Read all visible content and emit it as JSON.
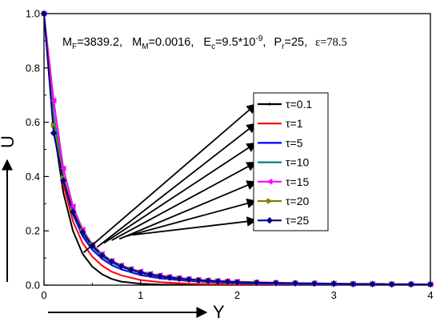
{
  "chart_data": {
    "type": "line",
    "xlabel": "Y",
    "ylabel": "U",
    "xlim": [
      0,
      4
    ],
    "ylim": [
      0,
      1.0
    ],
    "x_ticks": [
      "0",
      "1",
      "2",
      "3",
      "4"
    ],
    "y_ticks": [
      "0.0",
      "0.2",
      "0.4",
      "0.6",
      "0.8",
      "1.0"
    ],
    "annotation": {
      "mf_sym": "M",
      "mf_sub": "F",
      "mf_val": "=3839.2,",
      "mm_sym": "M",
      "mm_sub": "M",
      "mm_val": "=0.0016,",
      "ec_sym": "E",
      "ec_sub": "c",
      "ec_val": "=9.5*10",
      "ec_exp": "-9",
      "ec_tail": ",",
      "pr_sym": "P",
      "pr_sub": "r",
      "pr_val": "=25,",
      "eps": "ε=78.5"
    },
    "legend_position": "center-right",
    "arrow_tips": [
      {
        "x": 0.41,
        "y": 0.12
      },
      {
        "x": 0.55,
        "y": 0.14
      },
      {
        "x": 0.62,
        "y": 0.155
      },
      {
        "x": 0.7,
        "y": 0.165
      },
      {
        "x": 0.78,
        "y": 0.17
      },
      {
        "x": 0.85,
        "y": 0.18
      },
      {
        "x": 0.92,
        "y": 0.185
      }
    ],
    "series": [
      {
        "name": "τ=0.1",
        "color": "#000000",
        "marker": "none",
        "x": [
          0,
          0.1,
          0.2,
          0.3,
          0.4,
          0.5,
          0.6,
          0.7,
          0.8,
          1.0,
          1.2,
          1.5,
          2.0,
          2.5,
          3.0,
          4.0
        ],
        "y": [
          1.0,
          0.58,
          0.34,
          0.2,
          0.115,
          0.068,
          0.04,
          0.023,
          0.013,
          0.005,
          0.002,
          0.001,
          0.0,
          0.0,
          0.0,
          0.0
        ]
      },
      {
        "name": "τ=1",
        "color": "#ff0000",
        "marker": "none",
        "x": [
          0,
          0.1,
          0.2,
          0.3,
          0.4,
          0.5,
          0.6,
          0.7,
          0.8,
          1.0,
          1.2,
          1.5,
          2.0,
          2.5,
          3.0,
          4.0
        ],
        "y": [
          1.0,
          0.6,
          0.37,
          0.235,
          0.155,
          0.105,
          0.072,
          0.05,
          0.036,
          0.019,
          0.011,
          0.005,
          0.002,
          0.001,
          0.0,
          0.0
        ]
      },
      {
        "name": "τ=5",
        "color": "#0000ff",
        "marker": "none",
        "x": [
          0,
          0.1,
          0.2,
          0.3,
          0.4,
          0.5,
          0.6,
          0.7,
          0.8,
          1.0,
          1.2,
          1.5,
          2.0,
          2.5,
          3.0,
          4.0
        ],
        "y": [
          1.0,
          0.62,
          0.39,
          0.26,
          0.18,
          0.13,
          0.097,
          0.074,
          0.058,
          0.037,
          0.025,
          0.015,
          0.007,
          0.004,
          0.002,
          0.001
        ]
      },
      {
        "name": "τ=10",
        "color": "#008080",
        "marker": "none",
        "x": [
          0,
          0.1,
          0.2,
          0.3,
          0.4,
          0.5,
          0.6,
          0.7,
          0.8,
          1.0,
          1.2,
          1.5,
          2.0,
          2.5,
          3.0,
          4.0
        ],
        "y": [
          1.0,
          0.63,
          0.4,
          0.27,
          0.19,
          0.14,
          0.106,
          0.083,
          0.066,
          0.044,
          0.031,
          0.019,
          0.01,
          0.006,
          0.004,
          0.002
        ]
      },
      {
        "name": "τ=15",
        "color": "#ff00ff",
        "marker": "tri-left",
        "x": [
          0,
          0.1,
          0.2,
          0.3,
          0.4,
          0.5,
          0.6,
          0.7,
          0.8,
          0.9,
          1.0,
          1.1,
          1.2,
          1.3,
          1.4,
          1.5,
          1.6,
          1.7,
          1.8,
          1.9,
          2.0,
          2.2,
          2.4,
          2.6,
          2.8,
          3.0,
          3.2,
          3.4,
          3.6,
          3.8,
          4.0
        ],
        "y": [
          1.0,
          0.68,
          0.43,
          0.29,
          0.205,
          0.15,
          0.115,
          0.09,
          0.073,
          0.06,
          0.05,
          0.042,
          0.036,
          0.031,
          0.027,
          0.023,
          0.02,
          0.018,
          0.016,
          0.015,
          0.013,
          0.011,
          0.009,
          0.008,
          0.007,
          0.006,
          0.005,
          0.005,
          0.004,
          0.004,
          0.003
        ]
      },
      {
        "name": "τ=20",
        "color": "#808000",
        "marker": "tri-right",
        "x": [
          0,
          0.1,
          0.2,
          0.3,
          0.4,
          0.5,
          0.6,
          0.7,
          0.8,
          0.9,
          1.0,
          1.1,
          1.2,
          1.3,
          1.4,
          1.5,
          1.6,
          1.7,
          1.8,
          1.9,
          2.0,
          2.2,
          2.4,
          2.6,
          2.8,
          3.0,
          3.2,
          3.4,
          3.6,
          3.8,
          4.0
        ],
        "y": [
          1.0,
          0.59,
          0.395,
          0.275,
          0.2,
          0.148,
          0.112,
          0.088,
          0.071,
          0.058,
          0.048,
          0.04,
          0.034,
          0.029,
          0.025,
          0.022,
          0.019,
          0.017,
          0.015,
          0.013,
          0.012,
          0.01,
          0.008,
          0.007,
          0.006,
          0.005,
          0.005,
          0.004,
          0.004,
          0.003,
          0.003
        ]
      },
      {
        "name": "τ=25",
        "color": "#00008b",
        "marker": "diamond",
        "x": [
          0,
          0.1,
          0.2,
          0.3,
          0.4,
          0.5,
          0.6,
          0.7,
          0.8,
          0.9,
          1.0,
          1.1,
          1.2,
          1.3,
          1.4,
          1.5,
          1.6,
          1.7,
          1.8,
          1.9,
          2.0,
          2.2,
          2.4,
          2.6,
          2.8,
          3.0,
          3.2,
          3.4,
          3.6,
          3.8,
          4.0
        ],
        "y": [
          1.0,
          0.56,
          0.385,
          0.27,
          0.195,
          0.145,
          0.11,
          0.087,
          0.07,
          0.057,
          0.047,
          0.039,
          0.033,
          0.028,
          0.024,
          0.021,
          0.018,
          0.016,
          0.014,
          0.013,
          0.011,
          0.009,
          0.008,
          0.007,
          0.006,
          0.005,
          0.004,
          0.004,
          0.003,
          0.003,
          0.003
        ]
      }
    ]
  }
}
